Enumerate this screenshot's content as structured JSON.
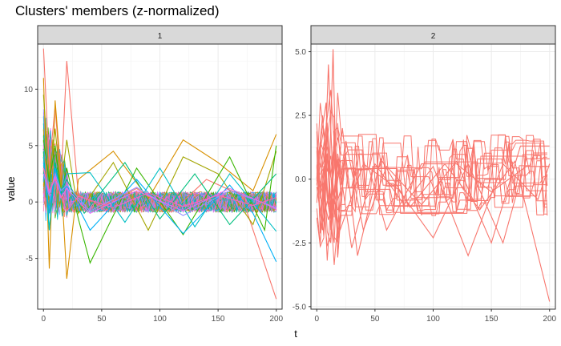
{
  "chart_data": {
    "type": "line",
    "title": "Clusters' members (z-normalized)",
    "xlabel": "t",
    "ylabel": "value",
    "xlim": [
      -5,
      205
    ],
    "x_ticks": [
      0,
      50,
      100,
      150,
      200
    ],
    "x_tick_labels": [
      "0",
      "50",
      "100",
      "150",
      "200"
    ],
    "grid": true,
    "panels": [
      {
        "strip_label": "1",
        "ylim": [
          -9.5,
          14.0
        ],
        "y_ticks": [
          -5,
          0,
          5,
          10
        ],
        "y_tick_labels": [
          "-5",
          "0",
          "5",
          "10"
        ],
        "colors": [
          "#F8766D",
          "#D89000",
          "#A3A500",
          "#39B600",
          "#00BF7D",
          "#00BFC4",
          "#00B0F6",
          "#9590FF",
          "#E76BF3",
          "#FF62BC"
        ],
        "series": [
          {
            "color": "#F8766D",
            "x": [
              0,
              5,
              10,
              15,
              20,
              30,
              50,
              80,
              110,
              140,
              170,
              200
            ],
            "values": [
              13.6,
              3.0,
              8.5,
              1.5,
              12.5,
              0.6,
              -0.4,
              1.2,
              -0.9,
              2.0,
              0.6,
              -8.6
            ]
          },
          {
            "color": "#D89000",
            "x": [
              0,
              5,
              10,
              15,
              20,
              30,
              60,
              90,
              120,
              150,
              180,
              200
            ],
            "values": [
              11.0,
              -5.9,
              9.0,
              2.5,
              -6.8,
              2.0,
              4.5,
              0.3,
              5.5,
              3.5,
              1.0,
              6.0
            ]
          },
          {
            "color": "#A3A500",
            "x": [
              0,
              5,
              10,
              15,
              20,
              30,
              60,
              90,
              120,
              150,
              180,
              200
            ],
            "values": [
              9.5,
              2.0,
              6.5,
              1.2,
              5.5,
              -1.0,
              3.5,
              -2.5,
              4.0,
              2.5,
              -2.0,
              4.5
            ]
          },
          {
            "color": "#39B600",
            "x": [
              0,
              5,
              10,
              15,
              20,
              30,
              40,
              80,
              120,
              160,
              190,
              200
            ],
            "values": [
              5.5,
              1.8,
              5.0,
              0.7,
              3.0,
              -1.5,
              -5.4,
              3.0,
              -2.9,
              4.0,
              -2.5,
              5.0
            ]
          },
          {
            "color": "#00BF7D",
            "x": [
              0,
              5,
              10,
              15,
              20,
              35,
              70,
              100,
              130,
              160,
              200
            ],
            "values": [
              4.5,
              -2.5,
              3.5,
              0.8,
              2.0,
              -1.0,
              3.5,
              -1.5,
              2.5,
              -2.0,
              2.5
            ]
          },
          {
            "color": "#00BFC4",
            "x": [
              0,
              5,
              10,
              15,
              20,
              40,
              70,
              100,
              130,
              160,
              200
            ],
            "values": [
              4.0,
              -2.5,
              3.0,
              1.0,
              2.5,
              2.6,
              -1.8,
              3.0,
              -2.2,
              2.5,
              -2.6
            ]
          },
          {
            "color": "#00B0F6",
            "x": [
              0,
              5,
              10,
              15,
              20,
              40,
              80,
              120,
              160,
              180,
              200
            ],
            "values": [
              3.5,
              -1.0,
              3.0,
              0.6,
              1.5,
              -2.5,
              2.0,
              -2.8,
              1.5,
              -1.0,
              -5.3
            ]
          },
          {
            "color": "#9590FF",
            "x": [
              0,
              5,
              10,
              15,
              20,
              40,
              80,
              120,
              160,
              200
            ],
            "values": [
              2.5,
              0.5,
              2.5,
              1.0,
              1.5,
              -0.8,
              1.3,
              -1.2,
              1.0,
              -0.5
            ]
          },
          {
            "color": "#E76BF3",
            "x": [
              0,
              5,
              10,
              15,
              20,
              40,
              80,
              120,
              160,
              200
            ],
            "values": [
              3.0,
              0.8,
              2.2,
              0.4,
              1.2,
              -1.0,
              1.0,
              -0.8,
              1.2,
              -0.6
            ]
          },
          {
            "color": "#FF62BC",
            "x": [
              0,
              5,
              10,
              15,
              20,
              30,
              60,
              90,
              120,
              150,
              180,
              200
            ],
            "values": [
              3.0,
              1.0,
              2.0,
              0.5,
              -0.8,
              0.5,
              -0.5,
              0.8,
              -0.4,
              0.6,
              -0.3,
              0.4
            ]
          }
        ]
      },
      {
        "strip_label": "2",
        "ylim": [
          -5.1,
          5.3
        ],
        "y_ticks": [
          -5.0,
          -2.5,
          0.0,
          2.5,
          5.0
        ],
        "y_tick_labels": [
          "-5.0",
          "-2.5",
          "0.0",
          "2.5",
          "5.0"
        ],
        "colors": [
          "#F8766D"
        ],
        "series": [
          {
            "color": "#F8766D",
            "x": [
              0,
              5,
              10,
              14,
              18,
              25,
              40,
              60,
              90,
              120,
              150,
              175,
              200
            ],
            "values": [
              0.0,
              2.5,
              -1.0,
              5.1,
              -3.0,
              1.5,
              -2.0,
              0.5,
              -1.0,
              0.7,
              -2.5,
              1.3,
              1.3
            ]
          },
          {
            "color": "#F8766D",
            "x": [
              0,
              5,
              10,
              15,
              22,
              35,
              55,
              80,
              110,
              140,
              170,
              200
            ],
            "values": [
              -0.3,
              -2.0,
              4.5,
              -1.5,
              2.0,
              -3.0,
              0.8,
              -1.1,
              0.6,
              -1.2,
              0.7,
              -4.8
            ]
          },
          {
            "color": "#F8766D",
            "x": [
              0,
              8,
              12,
              18,
              30,
              50,
              75,
              100,
              130,
              160,
              190,
              200
            ],
            "values": [
              0.5,
              3.0,
              -2.0,
              1.0,
              -2.7,
              0.6,
              -1.0,
              0.5,
              -3.0,
              0.6,
              -0.8,
              0.6
            ]
          },
          {
            "color": "#F8766D",
            "x": [
              0,
              5,
              12,
              20,
              40,
              70,
              100,
              130,
              160,
              180,
              200
            ],
            "values": [
              -0.2,
              1.0,
              3.5,
              -2.0,
              0.6,
              -0.4,
              -2.3,
              0.6,
              -2.5,
              0.8,
              0.8
            ]
          },
          {
            "color": "#F8766D",
            "x": [
              0,
              10,
              20,
              45,
              60,
              90,
              120,
              150,
              180,
              200
            ],
            "values": [
              0.5,
              -1.6,
              0.4,
              0.4,
              -2.0,
              0.6,
              0.6,
              -0.5,
              0.5,
              0.5
            ]
          }
        ]
      }
    ]
  }
}
